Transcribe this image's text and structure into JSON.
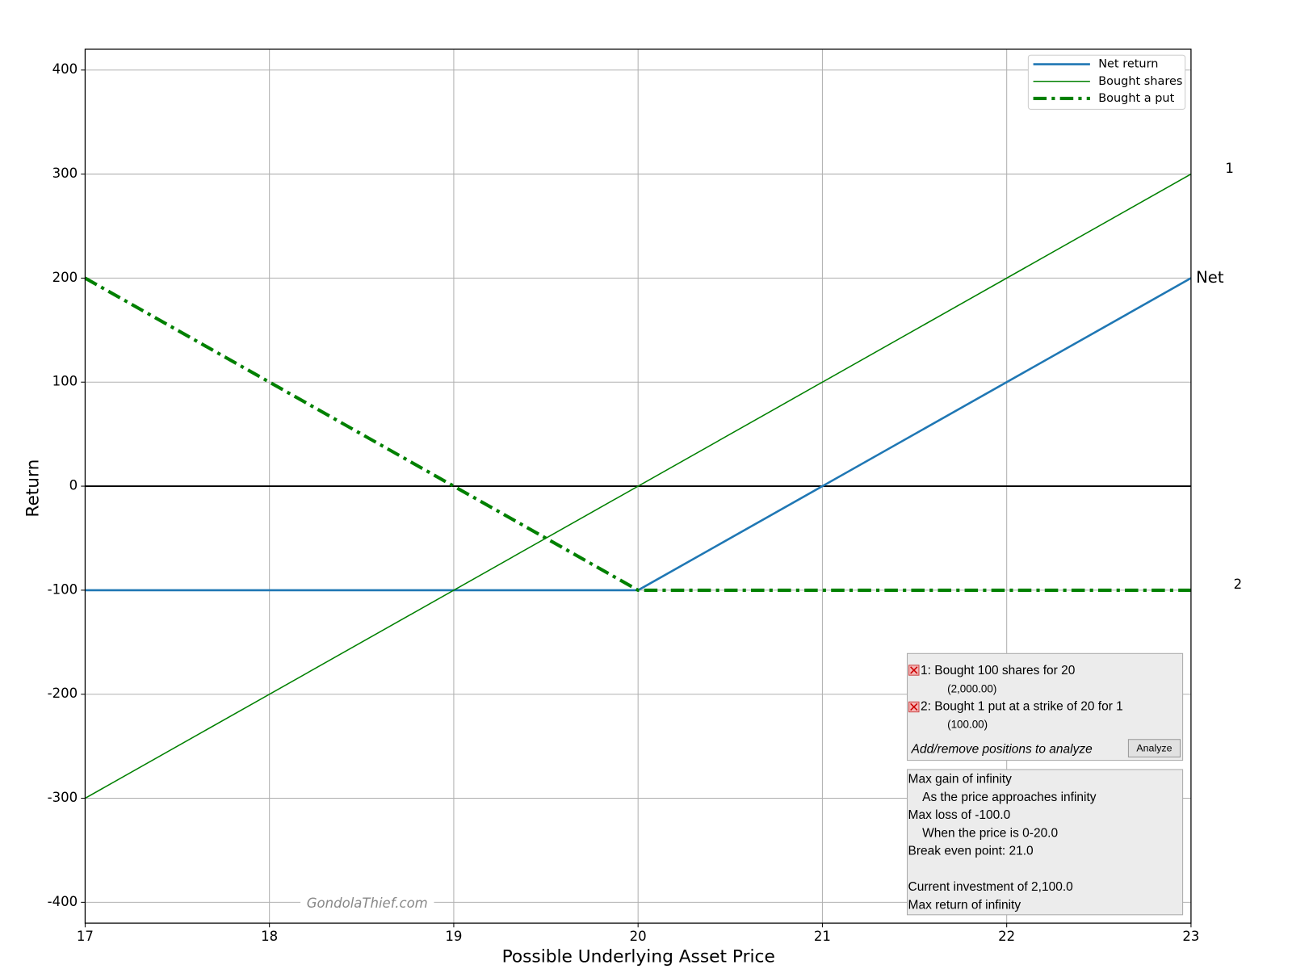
{
  "chart_data": {
    "type": "line",
    "xlabel": "Possible Underlying Asset Price",
    "ylabel": "Return",
    "xlim": [
      17,
      23
    ],
    "ylim": [
      -420,
      420
    ],
    "xticks": [
      17,
      18,
      19,
      20,
      21,
      22,
      23
    ],
    "yticks": [
      -400,
      -300,
      -200,
      -100,
      0,
      100,
      200,
      300,
      400
    ],
    "grid": true,
    "hline": 0,
    "legend": "upper right",
    "series": [
      {
        "name": "Net return",
        "color": "#1f77b4",
        "linestyle": "solid",
        "linewidth": 2.5,
        "x": [
          17,
          20,
          23
        ],
        "values": [
          -100,
          -100,
          200
        ],
        "end_label": "Net"
      },
      {
        "name": "Bought shares",
        "color": "#008000",
        "linestyle": "solid",
        "linewidth": 1.5,
        "x": [
          17,
          23
        ],
        "values": [
          -300,
          300
        ],
        "end_label": "1"
      },
      {
        "name": "Bought a put",
        "color": "#008000",
        "linestyle": "dashdot",
        "linewidth": 4,
        "x": [
          17,
          20,
          23
        ],
        "values": [
          200,
          -100,
          -100
        ],
        "end_label": "2"
      }
    ],
    "watermark": "GondolaThief.com"
  },
  "positions": [
    {
      "label": "1: Bought 100 shares for 20",
      "cost": "(2,000.00)"
    },
    {
      "label": "2: Bought 1 put at a strike of 20 for 1",
      "cost": "(100.00)"
    }
  ],
  "positions_hint": "Add/remove positions to analyze",
  "analyze_button": "Analyze",
  "summary": {
    "max_gain": "Max gain of infinity",
    "max_gain_detail": "As the price approaches infinity",
    "max_loss": "Max loss of -100.0",
    "max_loss_detail": "When the price is 0-20.0",
    "break_even": "Break even point: 21.0",
    "investment": "Current investment of 2,100.0",
    "max_return": "Max return of infinity"
  }
}
